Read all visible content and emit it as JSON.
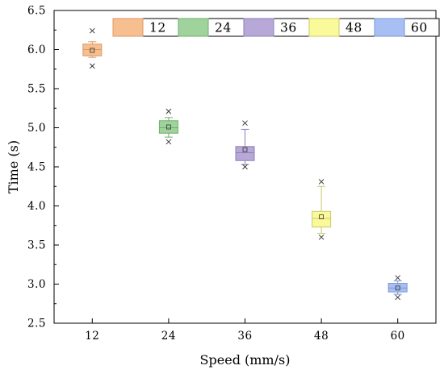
{
  "chart_data": {
    "type": "box",
    "xlabel": "Speed (mm/s)",
    "ylabel": "Time (s)",
    "ylim": [
      2.5,
      6.5
    ],
    "yticks": [
      "2.5",
      "3.0",
      "3.5",
      "4.0",
      "4.5",
      "5.0",
      "5.5",
      "6.0",
      "6.5"
    ],
    "categories": [
      "12",
      "24",
      "36",
      "48",
      "60"
    ],
    "legend": {
      "placement": "top-right",
      "entries": [
        "12",
        "24",
        "36",
        "48",
        "60"
      ]
    },
    "series": [
      {
        "name": "12",
        "color": "#f7be8f",
        "stroke": "#d99a66",
        "q1": 5.92,
        "median": 6.0,
        "q3": 6.07,
        "mean": 5.99,
        "whisker_low": 5.9,
        "whisker_high": 6.1,
        "min": 5.79,
        "max": 6.24
      },
      {
        "name": "24",
        "color": "#9fd39b",
        "stroke": "#6fae6c",
        "q1": 4.93,
        "median": 5.0,
        "q3": 5.09,
        "mean": 5.01,
        "whisker_low": 4.88,
        "whisker_high": 5.13,
        "min": 4.82,
        "max": 5.21
      },
      {
        "name": "36",
        "color": "#b7a8d8",
        "stroke": "#8e7fb8",
        "q1": 4.58,
        "median": 4.68,
        "q3": 4.76,
        "mean": 4.72,
        "whisker_low": 4.53,
        "whisker_high": 4.98,
        "min": 4.5,
        "max": 5.06
      },
      {
        "name": "48",
        "color": "#fafa9a",
        "stroke": "#c9c96e",
        "q1": 3.73,
        "median": 3.84,
        "q3": 3.93,
        "mean": 3.86,
        "whisker_low": 3.65,
        "whisker_high": 4.25,
        "min": 3.6,
        "max": 4.31
      },
      {
        "name": "60",
        "color": "#a7bff3",
        "stroke": "#7a96d6",
        "q1": 2.9,
        "median": 2.95,
        "q3": 3.01,
        "mean": 2.95,
        "whisker_low": 2.87,
        "whisker_high": 3.04,
        "min": 2.83,
        "max": 3.08
      }
    ]
  }
}
